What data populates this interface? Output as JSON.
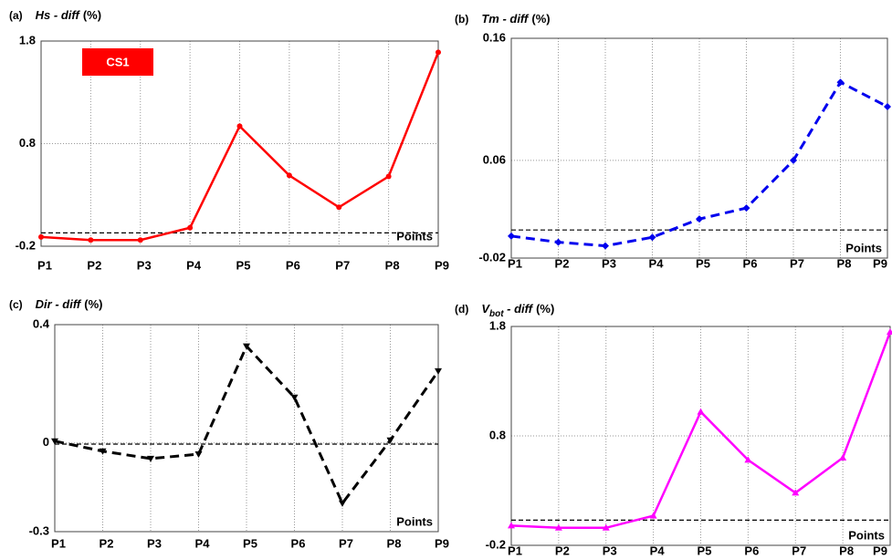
{
  "chart_data": [
    {
      "type": "line",
      "panel": "(a)",
      "title": "Hs - diff",
      "title_unit": "(%)",
      "annotation": "CS1",
      "x_label": "Points",
      "categories": [
        "P1",
        "P2",
        "P3",
        "P4",
        "P5",
        "P6",
        "P7",
        "P8",
        "P9"
      ],
      "series": [
        {
          "color": "#ff0000",
          "line_style": "solid",
          "marker": "circle",
          "values": [
            -0.11,
            -0.14,
            -0.14,
            -0.02,
            0.97,
            0.49,
            0.18,
            0.48,
            1.69
          ]
        }
      ],
      "hline": -0.07,
      "ylim": [
        -0.2,
        1.8
      ],
      "yticks": [
        -0.2,
        0.8,
        1.8
      ],
      "grid": true
    },
    {
      "type": "line",
      "panel": "(b)",
      "title": "Tm - diff",
      "title_unit": "(%)",
      "x_label": "Points",
      "categories": [
        "P1",
        "P2",
        "P3",
        "P4",
        "P5",
        "P6",
        "P7",
        "P8",
        "P9"
      ],
      "series": [
        {
          "color": "#0000ee",
          "line_style": "dashed",
          "marker": "diamond",
          "values": [
            -0.002,
            -0.007,
            -0.01,
            -0.003,
            0.012,
            0.021,
            0.06,
            0.124,
            0.104
          ]
        }
      ],
      "hline": 0.003,
      "ylim": [
        -0.02,
        0.16
      ],
      "yticks": [
        -0.02,
        0.06,
        0.16
      ],
      "grid": true
    },
    {
      "type": "line",
      "panel": "(c)",
      "title": "Dir - diff",
      "title_unit": "(%)",
      "x_label": "Points",
      "categories": [
        "P1",
        "P2",
        "P3",
        "P4",
        "P5",
        "P6",
        "P7",
        "P8",
        "P9"
      ],
      "series": [
        {
          "color": "#000000",
          "line_style": "dashed",
          "marker": "triangle-down",
          "values": [
            0.006,
            -0.028,
            -0.053,
            -0.038,
            0.327,
            0.154,
            -0.204,
            0.009,
            0.243
          ]
        }
      ],
      "hline": -0.004,
      "ylim": [
        -0.3,
        0.4
      ],
      "yticks": [
        -0.3,
        0,
        0.4
      ],
      "grid": true
    },
    {
      "type": "line",
      "panel": "(d)",
      "title": "V",
      "title_subscript": "bot",
      "title_suffix": " - diff",
      "title_unit": "(%)",
      "x_label": "Points",
      "categories": [
        "P1",
        "P2",
        "P3",
        "P4",
        "P5",
        "P6",
        "P7",
        "P8",
        "P9"
      ],
      "series": [
        {
          "color": "#ff00ff",
          "line_style": "solid",
          "marker": "triangle-up",
          "values": [
            -0.02,
            -0.04,
            -0.04,
            0.07,
            1.02,
            0.58,
            0.28,
            0.6,
            1.75
          ]
        }
      ],
      "hline": 0.03,
      "ylim": [
        -0.2,
        1.8
      ],
      "yticks": [
        -0.2,
        0.8,
        1.8
      ],
      "grid": true
    }
  ]
}
